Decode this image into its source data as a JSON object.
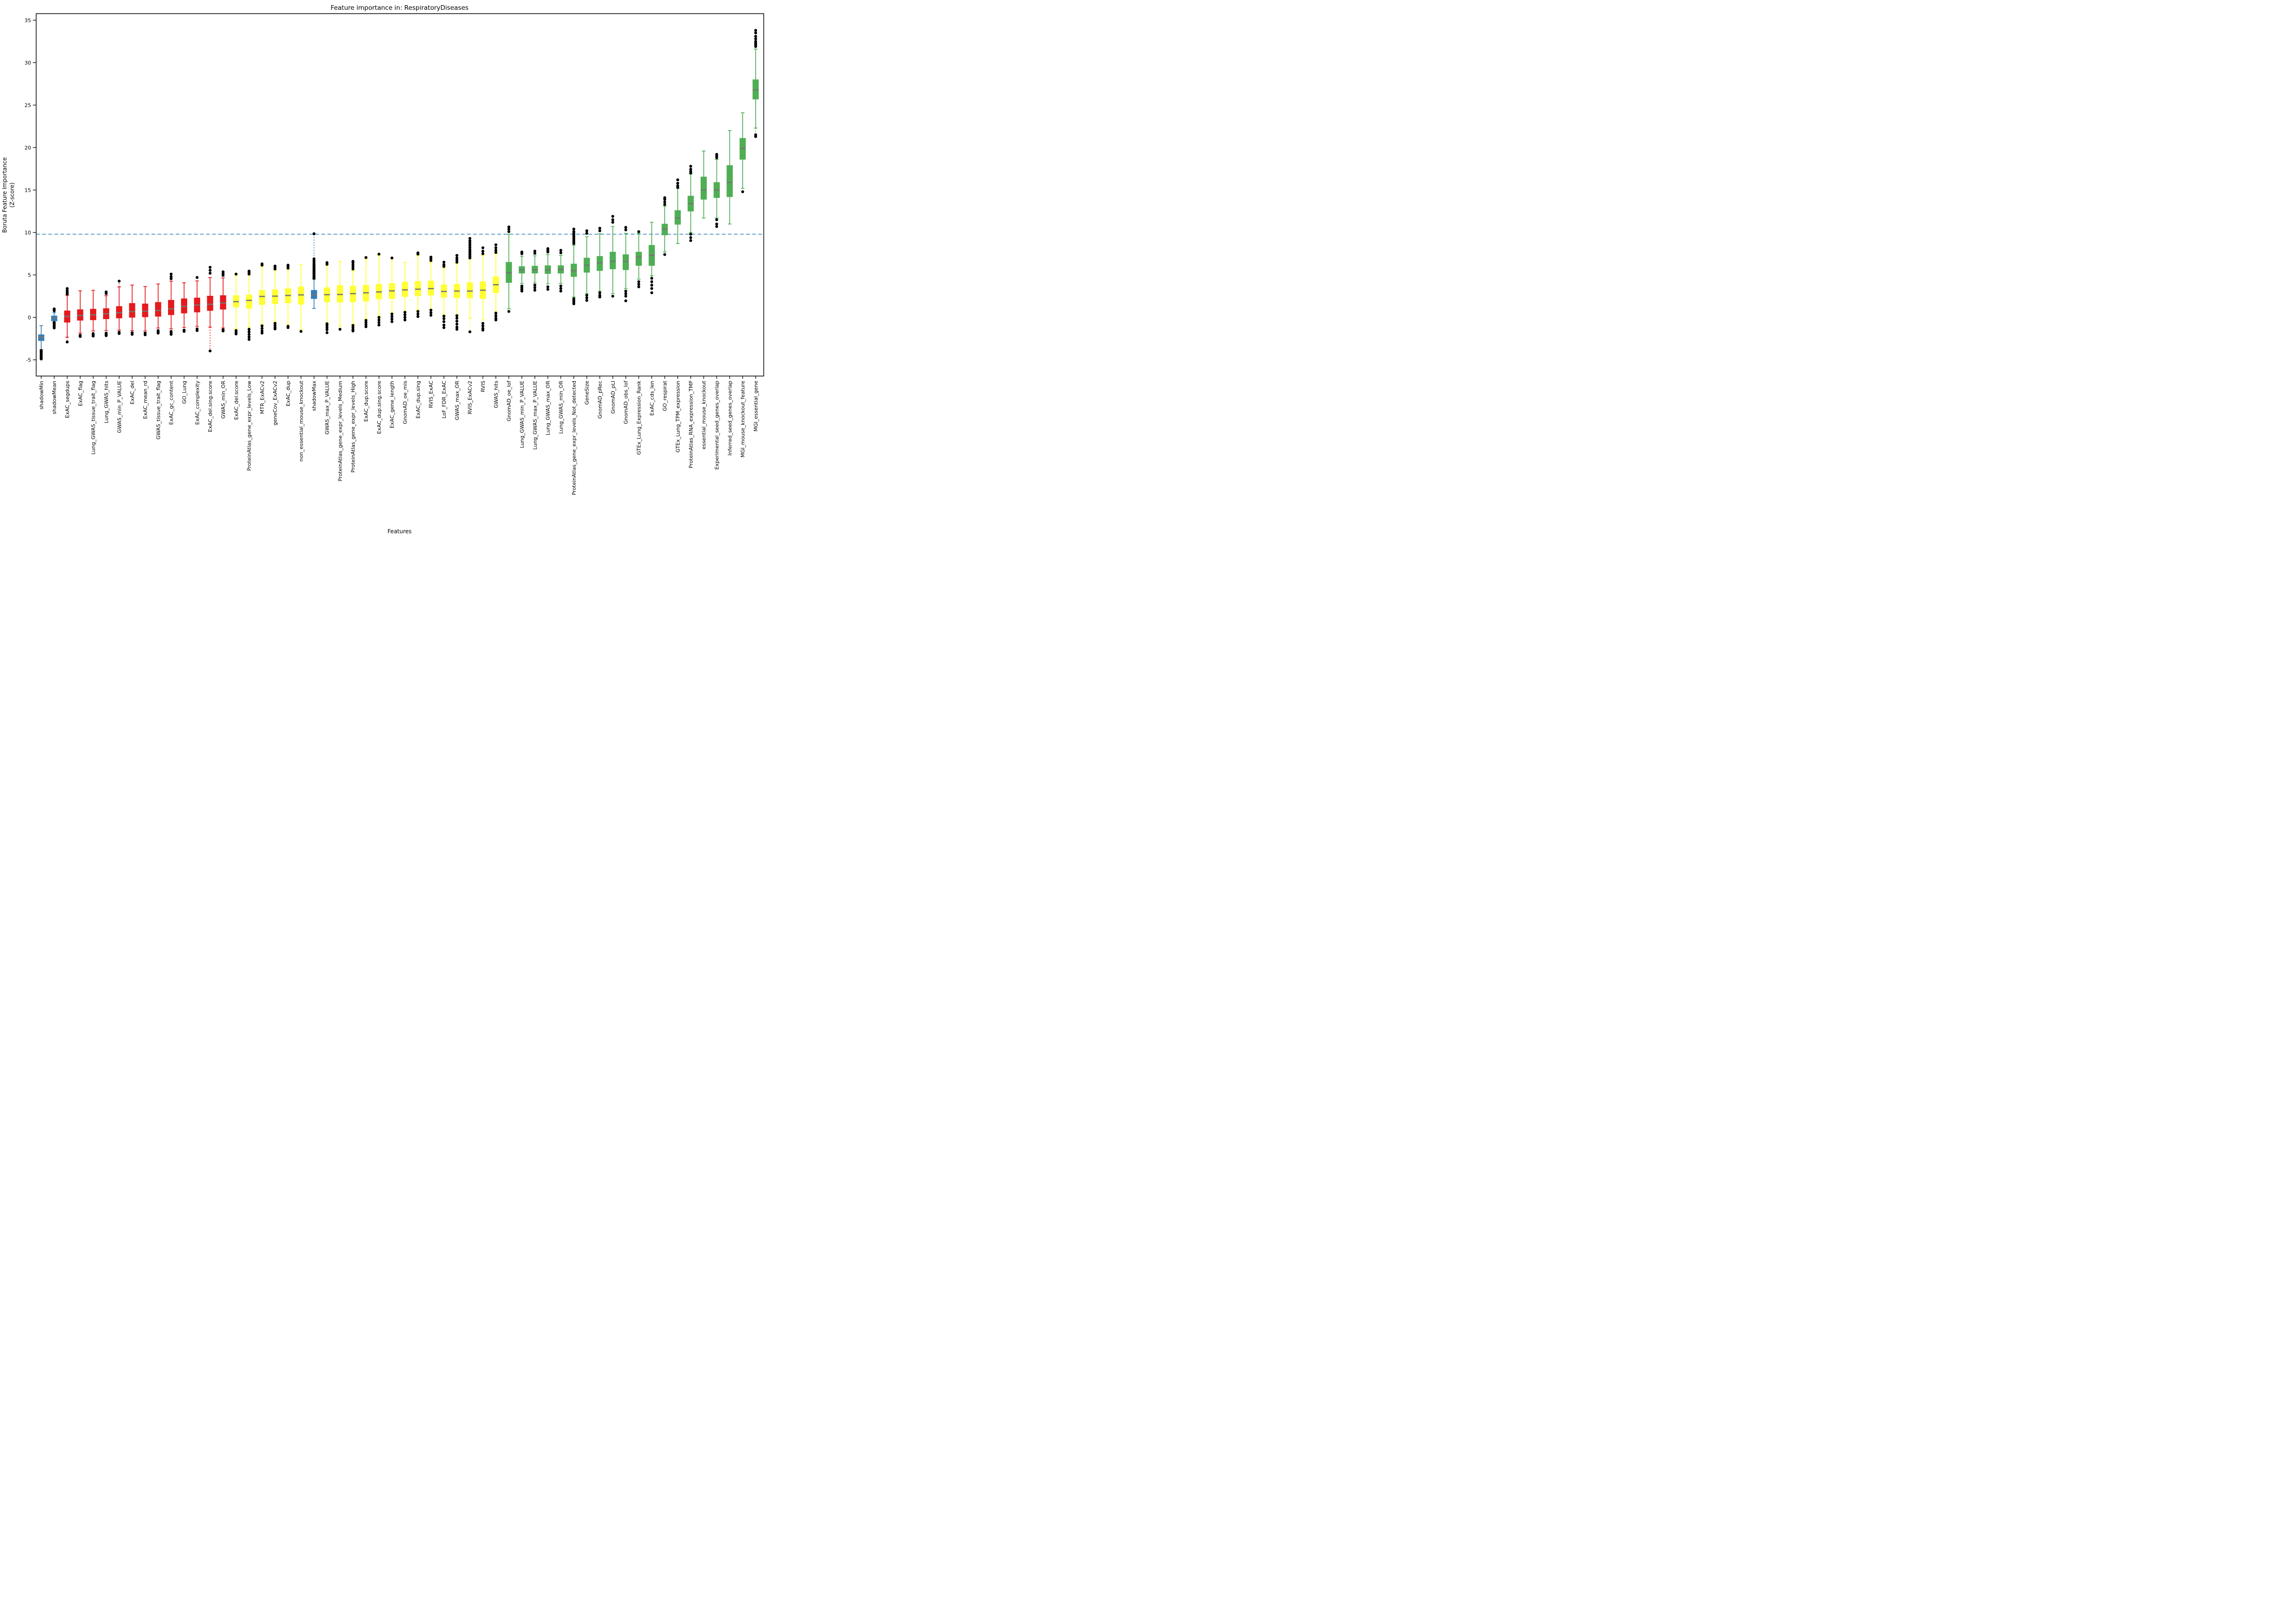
{
  "chart_data": {
    "type": "boxplot",
    "title": "Feature importance in: RespiratoryDiseases",
    "xlabel": "Features",
    "ylabel_line1": "Boruta Feature Importance",
    "ylabel_line2": "(Z-score)",
    "ylim": [
      -6.9,
      35.8
    ],
    "yticks": [
      -5,
      0,
      5,
      10,
      15,
      20,
      25,
      30,
      35
    ],
    "grid": false,
    "legend": "none",
    "threshold_line": {
      "value": 9.8,
      "color": "#1f77b4",
      "style": "dashed"
    },
    "colors": {
      "shadow": "#377eb8",
      "rejected": "#e41a1c",
      "tentative": "#ffff33",
      "confirmed": "#4fae54"
    },
    "median_color": "#757575",
    "outlier_color": "#000000",
    "features": [
      {
        "name": "shadowMin",
        "group": "shadow",
        "whislo": -3.8,
        "q1": -2.75,
        "med": -2.33,
        "q3": -2.03,
        "whishi": -0.97,
        "fliers_lo": [
          -3.9,
          -4.0,
          -4.1,
          -4.2,
          -4.3,
          -4.4,
          -4.5,
          -4.6,
          -4.7,
          -4.8,
          -4.9
        ],
        "fliers_hi": []
      },
      {
        "name": "shadowMean",
        "group": "shadow",
        "whislo": -0.54,
        "q1": -0.42,
        "med": -0.05,
        "q3": 0.18,
        "whishi": 0.55,
        "fliers_lo": [
          -0.6,
          -0.72,
          -0.85,
          -0.97,
          -1.1,
          -1.25
        ],
        "fliers_hi": [
          0.78,
          0.9,
          1.0
        ]
      },
      {
        "name": "ExAC_segdups",
        "group": "rejected",
        "whislo": -2.33,
        "q1": -0.58,
        "med": 0.12,
        "q3": 0.78,
        "whishi": 2.6,
        "fliers_lo": [
          -2.9
        ],
        "fliers_hi": [
          2.75,
          2.95,
          3.15,
          3.4
        ],
        "tail_lo": true
      },
      {
        "name": "ExAC_flag",
        "group": "rejected",
        "whislo": -1.85,
        "q1": -0.35,
        "med": 0.22,
        "q3": 0.92,
        "whishi": 3.13,
        "fliers_lo": [
          -2.1,
          -2.25
        ],
        "fliers_hi": []
      },
      {
        "name": "Lung_GWAS_tissue_trait_flag",
        "group": "rejected",
        "whislo": -1.6,
        "q1": -0.3,
        "med": 0.3,
        "q3": 0.98,
        "whishi": 3.19,
        "fliers_lo": [
          -1.9,
          -2.05,
          -2.2
        ],
        "fliers_hi": []
      },
      {
        "name": "Lung_GWAS_hits",
        "group": "rejected",
        "whislo": -1.55,
        "q1": -0.18,
        "med": 0.42,
        "q3": 1.05,
        "whishi": 2.55,
        "fliers_lo": [
          -1.85,
          -2.0,
          -2.15
        ],
        "fliers_hi": [
          2.8,
          3.0
        ]
      },
      {
        "name": "GWAS_min_P_VALUE",
        "group": "rejected",
        "whislo": -1.5,
        "q1": -0.08,
        "med": 0.55,
        "q3": 1.3,
        "whishi": 3.59,
        "fliers_lo": [
          -1.75,
          -1.9
        ],
        "fliers_hi": [
          4.27
        ],
        "tail_hi": true
      },
      {
        "name": "ExAC_del",
        "group": "rejected",
        "whislo": -1.55,
        "q1": 0.0,
        "med": 0.68,
        "q3": 1.66,
        "whishi": 3.81,
        "fliers_lo": [
          -1.8,
          -2.0
        ],
        "fliers_hi": []
      },
      {
        "name": "ExAC_mean_rd",
        "group": "rejected",
        "whislo": -1.6,
        "q1": 0.05,
        "med": 0.72,
        "q3": 1.6,
        "whishi": 3.63,
        "fliers_lo": [
          -1.85,
          -2.05
        ],
        "fliers_hi": []
      },
      {
        "name": "GWAS_tissue_trait_flag",
        "group": "rejected",
        "whislo": -1.25,
        "q1": 0.12,
        "med": 0.82,
        "q3": 1.78,
        "whishi": 3.94,
        "fliers_lo": [
          -1.55,
          -1.7,
          -1.85
        ],
        "fliers_hi": []
      },
      {
        "name": "ExAC_gc_content",
        "group": "rejected",
        "whislo": -1.35,
        "q1": 0.3,
        "med": 1.0,
        "q3": 2.03,
        "whishi": 4.27,
        "fliers_lo": [
          -1.65,
          -1.8,
          -2.0
        ],
        "fliers_hi": [
          4.55,
          4.8,
          5.1
        ]
      },
      {
        "name": "GO_Lung",
        "group": "rejected",
        "whislo": -1.2,
        "q1": 0.5,
        "med": 1.3,
        "q3": 2.21,
        "whishi": 4.08,
        "fliers_lo": [
          -1.5,
          -1.65
        ],
        "fliers_hi": []
      },
      {
        "name": "ExAC_complexity",
        "group": "rejected",
        "whislo": -1.05,
        "q1": 0.62,
        "med": 1.45,
        "q3": 2.3,
        "whishi": 4.3,
        "fliers_lo": [
          -1.35,
          -1.55
        ],
        "fliers_hi": [
          4.7
        ]
      },
      {
        "name": "ExAC_del.sing.score",
        "group": "rejected",
        "whislo": -1.15,
        "q1": 0.8,
        "med": 1.55,
        "q3": 2.52,
        "whishi": 4.7,
        "fliers_lo": [
          -3.95
        ],
        "fliers_hi": [
          5.2,
          5.55,
          5.9
        ],
        "tail_lo": true
      },
      {
        "name": "GWAS_min_OR",
        "group": "rejected",
        "whislo": -1.25,
        "q1": 0.95,
        "med": 1.7,
        "q3": 2.58,
        "whishi": 4.66,
        "fliers_lo": [
          -1.45,
          -1.6
        ],
        "fliers_hi": [
          4.95,
          5.15,
          5.37
        ]
      },
      {
        "name": "ExAC_del.score",
        "group": "tentative",
        "whislo": -1.35,
        "q1": 1.2,
        "med": 1.85,
        "q3": 2.58,
        "whishi": 4.95,
        "fliers_lo": [
          -1.55,
          -1.75,
          -1.95
        ],
        "fliers_hi": [
          5.1
        ]
      },
      {
        "name": "ProteinAtlas_gene_expr_levels_Low",
        "group": "tentative",
        "whislo": -1.15,
        "q1": 1.06,
        "med": 2.0,
        "q3": 2.65,
        "whishi": 5.0,
        "fliers_lo": [
          -1.4,
          -1.7,
          -2.0,
          -2.3,
          -2.6
        ],
        "fliers_hi": [
          5.1,
          5.3,
          5.45
        ]
      },
      {
        "name": "MTR_ExACv2",
        "group": "tentative",
        "whislo": -0.86,
        "q1": 1.5,
        "med": 2.47,
        "q3": 3.2,
        "whishi": 6.0,
        "fliers_lo": [
          -1.0,
          -1.3,
          -1.6,
          -1.85
        ],
        "fliers_hi": [
          6.15,
          6.3
        ]
      },
      {
        "name": "geneCov_ExACv2",
        "group": "tentative",
        "whislo": -0.54,
        "q1": 1.6,
        "med": 2.5,
        "q3": 3.26,
        "whishi": 5.55,
        "fliers_lo": [
          -0.7,
          -0.95,
          -1.2,
          -1.36
        ],
        "fliers_hi": [
          5.7,
          5.9,
          6.05
        ]
      },
      {
        "name": "ExAC_dup",
        "group": "tentative",
        "whislo": -0.9,
        "q1": 1.7,
        "med": 2.58,
        "q3": 3.4,
        "whishi": 5.67,
        "fliers_lo": [
          -1.05,
          -1.2
        ],
        "fliers_hi": [
          5.8,
          6.0,
          6.15
        ]
      },
      {
        "name": "non_essential_mouse_knockout",
        "group": "tentative",
        "whislo": -1.44,
        "q1": 1.54,
        "med": 2.65,
        "q3": 3.6,
        "whishi": 6.2,
        "fliers_lo": [
          -1.65
        ],
        "fliers_hi": []
      },
      {
        "name": "shadowMax",
        "group": "shadow",
        "whislo": 1.05,
        "q1": 2.2,
        "med": 2.65,
        "q3": 3.2,
        "whishi": 4.5,
        "fliers_lo": [],
        "fliers_hi": [
          4.6,
          4.72,
          4.84,
          4.96,
          5.08,
          5.2,
          5.32,
          5.45,
          5.58,
          5.72,
          5.86,
          6.0,
          6.15,
          6.3,
          6.5,
          6.7,
          6.9,
          9.85
        ],
        "tail_hi": true
      },
      {
        "name": "GWAS_max_P_VALUE",
        "group": "tentative",
        "whislo": -0.66,
        "q1": 1.83,
        "med": 2.67,
        "q3": 3.5,
        "whishi": 6.1,
        "fliers_lo": [
          -0.75,
          -0.95,
          -1.2,
          -1.45,
          -1.8
        ],
        "fliers_hi": [
          6.25,
          6.45
        ]
      },
      {
        "name": "ProteinAtlas_gene_expr_levels_Medium",
        "group": "tentative",
        "whislo": -1.05,
        "q1": 1.78,
        "med": 2.7,
        "q3": 3.77,
        "whishi": 6.6,
        "fliers_lo": [
          -1.4
        ],
        "fliers_hi": []
      },
      {
        "name": "ProteinAtlas_gene_expr_levels_High",
        "group": "tentative",
        "whislo": -0.8,
        "q1": 1.83,
        "med": 2.8,
        "q3": 3.7,
        "whishi": 5.5,
        "fliers_lo": [
          -0.95,
          -1.2,
          -1.45,
          -1.6
        ],
        "fliers_hi": [
          5.7,
          5.95,
          6.2,
          6.45,
          6.6
        ]
      },
      {
        "name": "ExAC_dup.score",
        "group": "tentative",
        "whislo": -0.2,
        "q1": 1.9,
        "med": 2.9,
        "q3": 3.8,
        "whishi": 6.9,
        "fliers_lo": [
          -0.35,
          -0.6,
          -0.85,
          -1.1
        ],
        "fliers_hi": [
          7.05
        ]
      },
      {
        "name": "ExAC_dup.sing.score",
        "group": "tentative",
        "whislo": 0.15,
        "q1": 2.16,
        "med": 3.0,
        "q3": 3.9,
        "whishi": 7.3,
        "fliers_lo": [
          0.0,
          -0.3,
          -0.6,
          -0.9
        ],
        "fliers_hi": [
          7.45
        ]
      },
      {
        "name": "ExAC_gene_length",
        "group": "tentative",
        "whislo": 0.53,
        "q1": 2.2,
        "med": 3.13,
        "q3": 4.0,
        "whishi": 6.9,
        "fliers_lo": [
          0.4,
          0.1,
          -0.2,
          -0.5
        ],
        "fliers_hi": [
          7.0
        ]
      },
      {
        "name": "GnomAD_oe_mis",
        "group": "tentative",
        "whislo": 0.73,
        "q1": 2.44,
        "med": 3.24,
        "q3": 4.16,
        "whishi": 6.5,
        "fliers_lo": [
          0.6,
          0.3,
          0.0,
          -0.3
        ],
        "fliers_hi": []
      },
      {
        "name": "ExAC_dup.sing",
        "group": "tentative",
        "whislo": 0.84,
        "q1": 2.53,
        "med": 3.32,
        "q3": 4.25,
        "whishi": 7.3,
        "fliers_lo": [
          0.7,
          0.4,
          0.1
        ],
        "fliers_hi": [
          7.45,
          7.6
        ]
      },
      {
        "name": "RVIS_ExAC",
        "group": "tentative",
        "whislo": 0.97,
        "q1": 2.6,
        "med": 3.39,
        "q3": 4.3,
        "whishi": 6.5,
        "fliers_lo": [
          0.85,
          0.55,
          0.25
        ],
        "fliers_hi": [
          6.7,
          6.9,
          7.1
        ]
      },
      {
        "name": "LoF_FDR_ExAC",
        "group": "tentative",
        "whislo": 0.3,
        "q1": 2.35,
        "med": 3.05,
        "q3": 3.85,
        "whishi": 5.8,
        "fliers_lo": [
          0.15,
          -0.15,
          -0.5,
          -0.9,
          -1.2
        ],
        "fliers_hi": [
          6.0,
          6.2,
          6.5
        ]
      },
      {
        "name": "GWAS_max_OR",
        "group": "tentative",
        "whislo": 0.3,
        "q1": 2.3,
        "med": 3.1,
        "q3": 3.9,
        "whishi": 6.35,
        "fliers_lo": [
          0.2,
          -0.1,
          -0.45,
          -0.8,
          -1.15,
          -1.4
        ],
        "fliers_hi": [
          6.5,
          6.75,
          7.0,
          7.3
        ]
      },
      {
        "name": "RVIS_ExACv2",
        "group": "tentative",
        "whislo": -0.1,
        "q1": 2.3,
        "med": 3.1,
        "q3": 4.1,
        "whishi": 6.9,
        "fliers_lo": [
          -1.7
        ],
        "fliers_hi": [
          7.0,
          7.2,
          7.4,
          7.6,
          7.8,
          8.0,
          8.25,
          8.5,
          8.75,
          9.0,
          9.3
        ],
        "tail_lo": true
      },
      {
        "name": "RVIS",
        "group": "tentative",
        "whislo": -0.3,
        "q1": 2.2,
        "med": 3.2,
        "q3": 4.2,
        "whishi": 7.3,
        "fliers_lo": [
          -0.7,
          -1.0,
          -1.3,
          -1.5
        ],
        "fliers_hi": [
          7.5,
          7.8,
          8.2
        ]
      },
      {
        "name": "GWAS_hits",
        "group": "tentative",
        "whislo": 0.66,
        "q1": 2.9,
        "med": 3.85,
        "q3": 4.8,
        "whishi": 7.5,
        "fliers_lo": [
          0.5,
          0.2,
          -0.1,
          -0.3
        ],
        "fliers_hi": [
          7.65,
          7.9,
          8.2,
          8.55
        ]
      },
      {
        "name": "GnomAD_oe_lof",
        "group": "confirmed",
        "whislo": 1.0,
        "q1": 4.1,
        "med": 5.25,
        "q3": 6.5,
        "whishi": 9.8,
        "fliers_lo": [
          0.7
        ],
        "fliers_hi": [
          10.1,
          10.4,
          10.65
        ]
      },
      {
        "name": "Lung_GWAS_min_P_VALUE",
        "group": "confirmed",
        "whislo": 4.0,
        "q1": 5.2,
        "med": 5.6,
        "q3": 6.0,
        "whishi": 7.2,
        "fliers_lo": [
          3.7,
          3.5,
          3.3,
          3.1
        ],
        "fliers_hi": [
          7.5,
          7.7
        ]
      },
      {
        "name": "Lung_GWAS_max_P_VALUE",
        "group": "confirmed",
        "whislo": 4.05,
        "q1": 5.2,
        "med": 5.6,
        "q3": 6.05,
        "whishi": 7.25,
        "fliers_lo": [
          3.8,
          3.5,
          3.2
        ],
        "fliers_hi": [
          7.55,
          7.8
        ]
      },
      {
        "name": "Lung_GWAS_max_OR",
        "group": "confirmed",
        "whislo": 3.95,
        "q1": 5.15,
        "med": 5.6,
        "q3": 6.1,
        "whishi": 7.4,
        "fliers_lo": [
          3.6,
          3.3
        ],
        "fliers_hi": [
          7.7,
          7.9,
          8.1
        ]
      },
      {
        "name": "Lung_GWAS_min_OR",
        "group": "confirmed",
        "whislo": 4.0,
        "q1": 5.2,
        "med": 5.65,
        "q3": 6.1,
        "whishi": 7.3,
        "fliers_lo": [
          3.7,
          3.4,
          3.1
        ],
        "fliers_hi": [
          7.6,
          7.9
        ]
      },
      {
        "name": "ProteinAtlas_gene_expr_levels_Not_detected",
        "group": "confirmed",
        "whislo": 2.4,
        "q1": 4.8,
        "med": 5.5,
        "q3": 6.3,
        "whishi": 8.5,
        "fliers_lo": [
          2.2,
          2.0,
          1.8,
          1.6
        ],
        "fliers_hi": [
          8.7,
          8.9,
          9.1,
          9.3,
          9.5,
          9.7,
          9.9,
          10.1,
          10.4
        ]
      },
      {
        "name": "GeneSize",
        "group": "confirmed",
        "whislo": 2.8,
        "q1": 5.3,
        "med": 6.15,
        "q3": 7.0,
        "whishi": 9.5,
        "fliers_lo": [
          2.6,
          2.3,
          2.0
        ],
        "fliers_hi": [
          9.9,
          10.2
        ]
      },
      {
        "name": "GnomAD_pRec",
        "group": "confirmed",
        "whislo": 3.1,
        "q1": 5.5,
        "med": 6.4,
        "q3": 7.2,
        "whishi": 9.85,
        "fliers_lo": [
          2.9,
          2.6,
          2.4
        ],
        "fliers_hi": [
          10.2,
          10.5
        ]
      },
      {
        "name": "GnomAD_pLI",
        "group": "confirmed",
        "whislo": 2.8,
        "q1": 5.7,
        "med": 6.6,
        "q3": 7.7,
        "whishi": 10.7,
        "fliers_lo": [
          2.5
        ],
        "fliers_hi": [
          11.2,
          11.5,
          11.9
        ]
      },
      {
        "name": "GnomAD_obs_lof",
        "group": "confirmed",
        "whislo": 3.4,
        "q1": 5.6,
        "med": 6.6,
        "q3": 7.4,
        "whishi": 9.9,
        "fliers_lo": [
          3.1,
          2.8,
          2.5,
          1.95
        ],
        "fliers_hi": [
          10.3,
          10.6
        ]
      },
      {
        "name": "GTEx_Lung_Expression_Rank",
        "group": "confirmed",
        "whislo": 4.5,
        "q1": 6.1,
        "med": 7.1,
        "q3": 7.7,
        "whishi": 9.9,
        "fliers_lo": [
          4.2,
          3.9,
          3.6
        ],
        "fliers_hi": [
          10.1
        ]
      },
      {
        "name": "ExAC_cds_len",
        "group": "confirmed",
        "whislo": 4.9,
        "q1": 6.1,
        "med": 7.3,
        "q3": 8.5,
        "whishi": 11.2,
        "fliers_lo": [
          4.6,
          4.2,
          3.8,
          3.4,
          2.9
        ],
        "fliers_hi": [],
        "tail_lo": true
      },
      {
        "name": "GO_respirat",
        "group": "confirmed",
        "whislo": 7.7,
        "q1": 9.7,
        "med": 10.4,
        "q3": 11.0,
        "whishi": 13.1,
        "fliers_lo": [
          7.4
        ],
        "fliers_hi": [
          13.3,
          13.6,
          13.9,
          14.1
        ]
      },
      {
        "name": "GTEx_Lung_TPM_expression",
        "group": "confirmed",
        "whislo": 8.7,
        "q1": 10.95,
        "med": 11.7,
        "q3": 12.6,
        "whishi": 15.2,
        "fliers_lo": [],
        "fliers_hi": [
          15.3,
          15.5,
          15.8,
          16.2
        ]
      },
      {
        "name": "ProteinAtlas_RNA_expression_TMP",
        "group": "confirmed",
        "whislo": 10.0,
        "q1": 12.5,
        "med": 13.4,
        "q3": 14.3,
        "whishi": 16.9,
        "fliers_lo": [
          9.8,
          9.4,
          9.05
        ],
        "fliers_hi": [
          17.0,
          17.2,
          17.45,
          17.8
        ]
      },
      {
        "name": "essential_mouse_knockout",
        "group": "confirmed",
        "whislo": 11.7,
        "q1": 13.9,
        "med": 15.0,
        "q3": 16.55,
        "whishi": 19.6,
        "fliers_lo": [],
        "fliers_hi": []
      },
      {
        "name": "Experimental_seed_genes_overlap",
        "group": "confirmed",
        "whislo": 11.7,
        "q1": 14.1,
        "med": 15.0,
        "q3": 15.9,
        "whishi": 18.6,
        "fliers_lo": [
          11.5,
          11.0,
          10.7
        ],
        "fliers_hi": [
          18.8,
          19.0,
          19.2
        ]
      },
      {
        "name": "Inferred_seed_genes_overlap",
        "group": "confirmed",
        "whislo": 11.0,
        "q1": 14.2,
        "med": 15.9,
        "q3": 17.9,
        "whishi": 22.0,
        "fliers_lo": [],
        "fliers_hi": []
      },
      {
        "name": "MGI_mouse_knockout_feature",
        "group": "confirmed",
        "whislo": 15.2,
        "q1": 18.6,
        "med": 19.9,
        "q3": 21.1,
        "whishi": 24.1,
        "fliers_lo": [
          14.8
        ],
        "fliers_hi": []
      },
      {
        "name": "MGI_essential_gene",
        "group": "confirmed",
        "whislo": 22.3,
        "q1": 25.7,
        "med": 26.8,
        "q3": 28.0,
        "whishi": 31.6,
        "fliers_lo": [
          21.5,
          21.3
        ],
        "fliers_hi": [
          31.9,
          32.1,
          32.3,
          32.5,
          32.8,
          33.1,
          33.5,
          33.8
        ],
        "tail_lo": true
      }
    ]
  }
}
